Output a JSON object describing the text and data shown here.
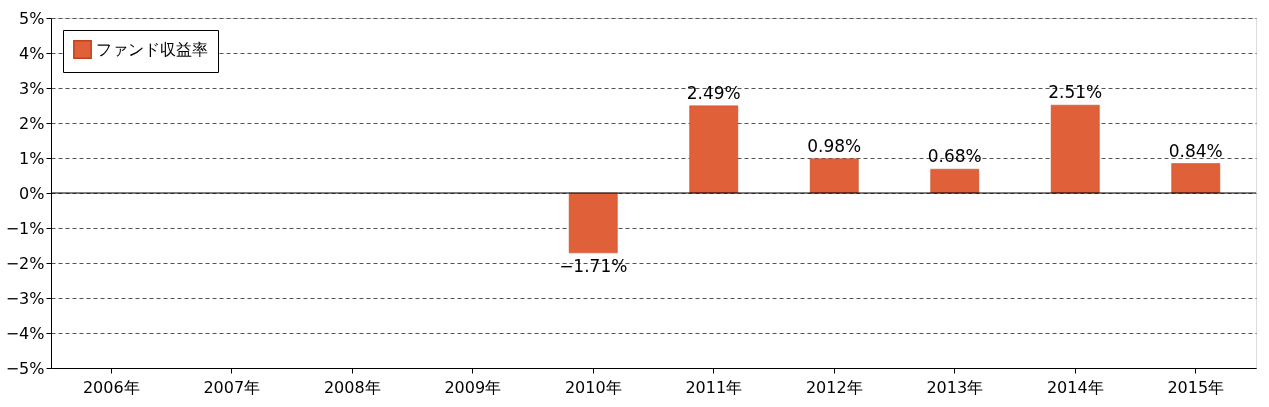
{
  "chart_data": {
    "type": "bar",
    "categories": [
      "2006年",
      "2007年",
      "2008年",
      "2009年",
      "2010年",
      "2011年",
      "2012年",
      "2013年",
      "2014年",
      "2015年"
    ],
    "series": [
      {
        "name": "ファンド収益率",
        "color": "#e0603a",
        "values": [
          null,
          null,
          null,
          null,
          -1.71,
          2.49,
          0.98,
          0.68,
          2.51,
          0.84
        ],
        "value_labels": [
          null,
          null,
          null,
          null,
          "−1.71%",
          "2.49%",
          "0.98%",
          "0.68%",
          "2.51%",
          "0.84%"
        ]
      }
    ],
    "ylim": [
      -5,
      5
    ],
    "yticks": [
      {
        "value": -5,
        "label": "−5%"
      },
      {
        "value": -4,
        "label": "−4%"
      },
      {
        "value": -3,
        "label": "−3%"
      },
      {
        "value": -2,
        "label": "−2%"
      },
      {
        "value": -1,
        "label": "−1%"
      },
      {
        "value": 0,
        "label": "0%"
      },
      {
        "value": 1,
        "label": "1%"
      },
      {
        "value": 2,
        "label": "2%"
      },
      {
        "value": 3,
        "label": "3%"
      },
      {
        "value": 4,
        "label": "4%"
      },
      {
        "value": 5,
        "label": "5%"
      }
    ],
    "ref_lines": [
      {
        "axis": "y",
        "value": 0,
        "color": "#000000",
        "line_style": "solid"
      }
    ],
    "grid": "y",
    "legend": "top left"
  }
}
